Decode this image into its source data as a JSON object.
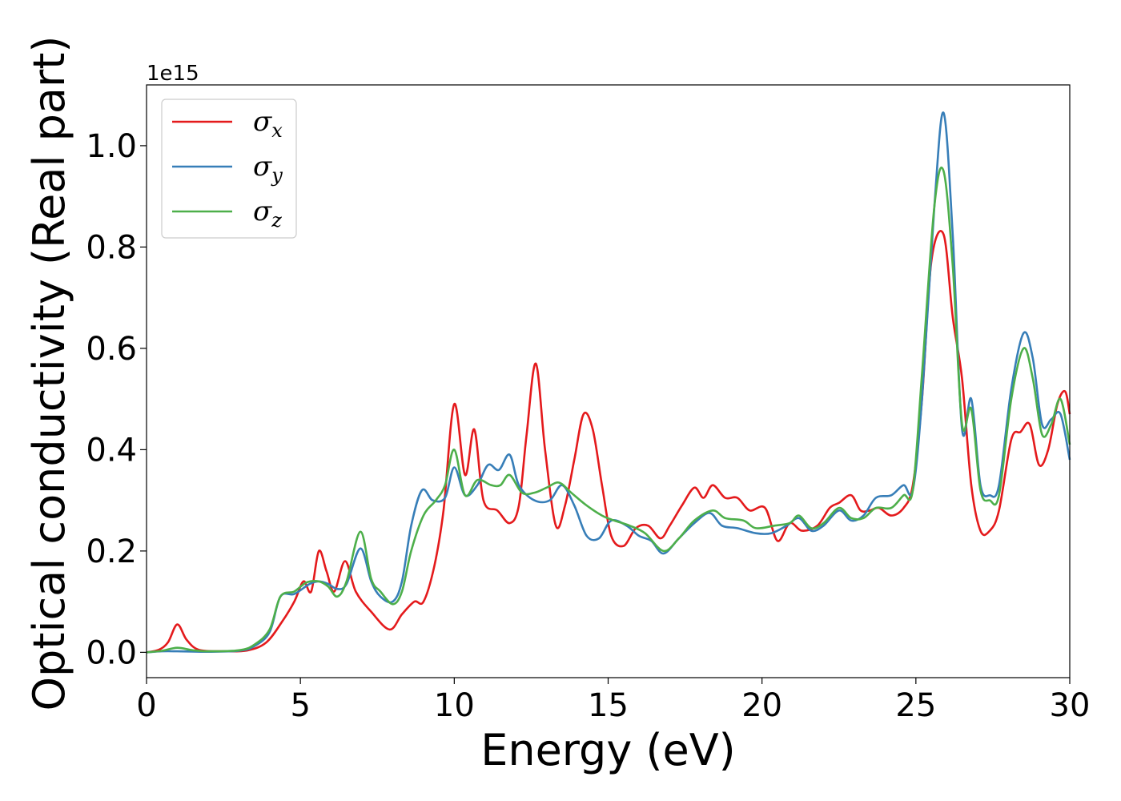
{
  "chart_data": {
    "type": "line",
    "xlabel": "Energy (eV)",
    "ylabel": "Optical conductivity (Real part)",
    "y_offset_label": "1e15",
    "xlim": [
      0,
      30
    ],
    "ylim": [
      -0.05,
      1.12
    ],
    "x_ticks": [
      0,
      5,
      10,
      15,
      20,
      25,
      30
    ],
    "x_tick_labels": [
      "0",
      "5",
      "10",
      "15",
      "20",
      "25",
      "30"
    ],
    "y_ticks": [
      0.0,
      0.2,
      0.4,
      0.6,
      0.8,
      1.0
    ],
    "y_tick_labels": [
      "0.0",
      "0.2",
      "0.4",
      "0.6",
      "0.8",
      "1.0"
    ],
    "grid": false,
    "legend_position": "top-left",
    "series": [
      {
        "name": "σ",
        "subscript": "x",
        "color": "#e41a1c",
        "points": [
          [
            0,
            0
          ],
          [
            0.4,
            0.005
          ],
          [
            0.7,
            0.02
          ],
          [
            1.0,
            0.055
          ],
          [
            1.3,
            0.025
          ],
          [
            1.7,
            0.005
          ],
          [
            2.5,
            0.002
          ],
          [
            3.3,
            0.004
          ],
          [
            3.9,
            0.02
          ],
          [
            4.4,
            0.06
          ],
          [
            4.8,
            0.1
          ],
          [
            5.1,
            0.14
          ],
          [
            5.35,
            0.12
          ],
          [
            5.6,
            0.2
          ],
          [
            5.85,
            0.16
          ],
          [
            6.1,
            0.12
          ],
          [
            6.45,
            0.18
          ],
          [
            6.8,
            0.12
          ],
          [
            7.3,
            0.08
          ],
          [
            7.9,
            0.045
          ],
          [
            8.3,
            0.075
          ],
          [
            8.7,
            0.1
          ],
          [
            9.0,
            0.1
          ],
          [
            9.35,
            0.17
          ],
          [
            9.65,
            0.28
          ],
          [
            10.0,
            0.49
          ],
          [
            10.35,
            0.35
          ],
          [
            10.65,
            0.44
          ],
          [
            10.95,
            0.3
          ],
          [
            11.4,
            0.28
          ],
          [
            11.8,
            0.255
          ],
          [
            12.1,
            0.29
          ],
          [
            12.35,
            0.43
          ],
          [
            12.65,
            0.57
          ],
          [
            12.95,
            0.4
          ],
          [
            13.3,
            0.25
          ],
          [
            13.6,
            0.29
          ],
          [
            13.9,
            0.38
          ],
          [
            14.2,
            0.47
          ],
          [
            14.5,
            0.44
          ],
          [
            14.8,
            0.33
          ],
          [
            15.1,
            0.23
          ],
          [
            15.5,
            0.21
          ],
          [
            15.9,
            0.245
          ],
          [
            16.3,
            0.25
          ],
          [
            16.7,
            0.225
          ],
          [
            17.0,
            0.25
          ],
          [
            17.4,
            0.29
          ],
          [
            17.8,
            0.325
          ],
          [
            18.1,
            0.305
          ],
          [
            18.4,
            0.33
          ],
          [
            18.8,
            0.305
          ],
          [
            19.2,
            0.305
          ],
          [
            19.6,
            0.28
          ],
          [
            20.1,
            0.285
          ],
          [
            20.5,
            0.22
          ],
          [
            20.9,
            0.255
          ],
          [
            21.3,
            0.24
          ],
          [
            21.8,
            0.25
          ],
          [
            22.2,
            0.285
          ],
          [
            22.5,
            0.295
          ],
          [
            22.9,
            0.31
          ],
          [
            23.2,
            0.28
          ],
          [
            23.5,
            0.28
          ],
          [
            23.8,
            0.285
          ],
          [
            24.2,
            0.27
          ],
          [
            24.6,
            0.285
          ],
          [
            24.9,
            0.33
          ],
          [
            25.2,
            0.5
          ],
          [
            25.5,
            0.77
          ],
          [
            25.9,
            0.825
          ],
          [
            26.2,
            0.66
          ],
          [
            26.5,
            0.54
          ],
          [
            26.8,
            0.33
          ],
          [
            27.1,
            0.24
          ],
          [
            27.4,
            0.24
          ],
          [
            27.7,
            0.28
          ],
          [
            28.1,
            0.42
          ],
          [
            28.4,
            0.435
          ],
          [
            28.7,
            0.45
          ],
          [
            29.0,
            0.37
          ],
          [
            29.3,
            0.4
          ],
          [
            29.6,
            0.49
          ],
          [
            29.85,
            0.515
          ],
          [
            30.0,
            0.47
          ]
        ]
      },
      {
        "name": "σ",
        "subscript": "y",
        "color": "#377eb8",
        "points": [
          [
            0,
            0
          ],
          [
            0.5,
            0.002
          ],
          [
            1.0,
            0.002
          ],
          [
            2.0,
            0.001
          ],
          [
            3.0,
            0.003
          ],
          [
            3.5,
            0.012
          ],
          [
            4.0,
            0.04
          ],
          [
            4.35,
            0.11
          ],
          [
            4.8,
            0.115
          ],
          [
            5.3,
            0.135
          ],
          [
            5.6,
            0.14
          ],
          [
            5.9,
            0.135
          ],
          [
            6.2,
            0.125
          ],
          [
            6.5,
            0.135
          ],
          [
            6.95,
            0.205
          ],
          [
            7.3,
            0.14
          ],
          [
            7.6,
            0.11
          ],
          [
            8.0,
            0.1
          ],
          [
            8.3,
            0.14
          ],
          [
            8.6,
            0.25
          ],
          [
            8.95,
            0.32
          ],
          [
            9.3,
            0.3
          ],
          [
            9.7,
            0.305
          ],
          [
            10.0,
            0.365
          ],
          [
            10.35,
            0.31
          ],
          [
            10.75,
            0.33
          ],
          [
            11.1,
            0.37
          ],
          [
            11.45,
            0.36
          ],
          [
            11.8,
            0.39
          ],
          [
            12.1,
            0.33
          ],
          [
            12.6,
            0.3
          ],
          [
            13.1,
            0.3
          ],
          [
            13.5,
            0.33
          ],
          [
            13.9,
            0.29
          ],
          [
            14.3,
            0.23
          ],
          [
            14.7,
            0.225
          ],
          [
            15.1,
            0.26
          ],
          [
            15.6,
            0.25
          ],
          [
            16.0,
            0.23
          ],
          [
            16.4,
            0.22
          ],
          [
            16.8,
            0.195
          ],
          [
            17.3,
            0.225
          ],
          [
            17.8,
            0.255
          ],
          [
            18.3,
            0.275
          ],
          [
            18.7,
            0.25
          ],
          [
            19.2,
            0.245
          ],
          [
            19.8,
            0.235
          ],
          [
            20.3,
            0.235
          ],
          [
            20.8,
            0.25
          ],
          [
            21.2,
            0.265
          ],
          [
            21.6,
            0.24
          ],
          [
            22.0,
            0.25
          ],
          [
            22.5,
            0.28
          ],
          [
            22.9,
            0.26
          ],
          [
            23.3,
            0.27
          ],
          [
            23.7,
            0.305
          ],
          [
            24.2,
            0.31
          ],
          [
            24.6,
            0.33
          ],
          [
            24.9,
            0.32
          ],
          [
            25.2,
            0.5
          ],
          [
            25.6,
            0.88
          ],
          [
            25.9,
            1.065
          ],
          [
            26.2,
            0.82
          ],
          [
            26.5,
            0.44
          ],
          [
            26.8,
            0.5
          ],
          [
            27.1,
            0.33
          ],
          [
            27.4,
            0.31
          ],
          [
            27.7,
            0.33
          ],
          [
            28.1,
            0.52
          ],
          [
            28.5,
            0.63
          ],
          [
            28.8,
            0.58
          ],
          [
            29.1,
            0.45
          ],
          [
            29.4,
            0.46
          ],
          [
            29.7,
            0.47
          ],
          [
            30.0,
            0.38
          ]
        ]
      },
      {
        "name": "σ",
        "subscript": "z",
        "color": "#4daf4a",
        "points": [
          [
            0,
            0
          ],
          [
            0.5,
            0.003
          ],
          [
            1.0,
            0.009
          ],
          [
            1.5,
            0.004
          ],
          [
            2.0,
            0.002
          ],
          [
            3.0,
            0.004
          ],
          [
            3.5,
            0.015
          ],
          [
            4.0,
            0.045
          ],
          [
            4.35,
            0.11
          ],
          [
            4.8,
            0.12
          ],
          [
            5.2,
            0.138
          ],
          [
            5.6,
            0.14
          ],
          [
            5.9,
            0.13
          ],
          [
            6.2,
            0.11
          ],
          [
            6.5,
            0.14
          ],
          [
            6.95,
            0.238
          ],
          [
            7.3,
            0.145
          ],
          [
            7.6,
            0.12
          ],
          [
            8.0,
            0.095
          ],
          [
            8.3,
            0.12
          ],
          [
            8.6,
            0.2
          ],
          [
            9.0,
            0.27
          ],
          [
            9.4,
            0.3
          ],
          [
            9.7,
            0.33
          ],
          [
            10.0,
            0.4
          ],
          [
            10.35,
            0.31
          ],
          [
            10.75,
            0.34
          ],
          [
            11.2,
            0.33
          ],
          [
            11.5,
            0.33
          ],
          [
            11.8,
            0.35
          ],
          [
            12.2,
            0.315
          ],
          [
            12.6,
            0.315
          ],
          [
            13.0,
            0.325
          ],
          [
            13.4,
            0.335
          ],
          [
            13.8,
            0.315
          ],
          [
            14.3,
            0.29
          ],
          [
            14.8,
            0.27
          ],
          [
            15.2,
            0.26
          ],
          [
            15.7,
            0.25
          ],
          [
            16.2,
            0.235
          ],
          [
            16.8,
            0.2
          ],
          [
            17.3,
            0.225
          ],
          [
            17.8,
            0.26
          ],
          [
            18.4,
            0.28
          ],
          [
            18.8,
            0.265
          ],
          [
            19.4,
            0.26
          ],
          [
            19.8,
            0.245
          ],
          [
            20.4,
            0.25
          ],
          [
            20.9,
            0.255
          ],
          [
            21.2,
            0.27
          ],
          [
            21.6,
            0.245
          ],
          [
            22.0,
            0.255
          ],
          [
            22.5,
            0.285
          ],
          [
            22.9,
            0.265
          ],
          [
            23.3,
            0.265
          ],
          [
            23.7,
            0.285
          ],
          [
            24.2,
            0.285
          ],
          [
            24.6,
            0.31
          ],
          [
            24.9,
            0.32
          ],
          [
            25.2,
            0.55
          ],
          [
            25.6,
            0.88
          ],
          [
            25.9,
            0.95
          ],
          [
            26.2,
            0.76
          ],
          [
            26.5,
            0.45
          ],
          [
            26.8,
            0.48
          ],
          [
            27.1,
            0.32
          ],
          [
            27.4,
            0.3
          ],
          [
            27.7,
            0.31
          ],
          [
            28.1,
            0.5
          ],
          [
            28.5,
            0.6
          ],
          [
            28.8,
            0.54
          ],
          [
            29.1,
            0.43
          ],
          [
            29.4,
            0.45
          ],
          [
            29.7,
            0.5
          ],
          [
            30.0,
            0.41
          ]
        ]
      }
    ]
  }
}
